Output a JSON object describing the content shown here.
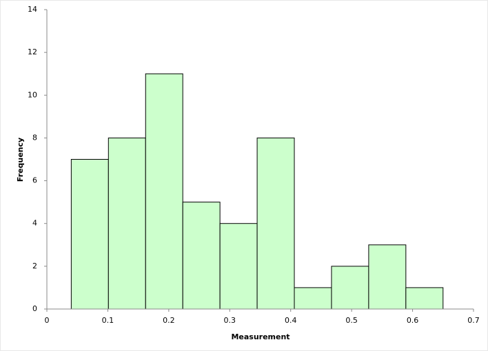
{
  "chart_data": {
    "type": "histogram",
    "xlabel": "Measurement",
    "ylabel": "Frequency",
    "bins": [
      0.04,
      0.101,
      0.162,
      0.223,
      0.284,
      0.345,
      0.406,
      0.467,
      0.528,
      0.589,
      0.65
    ],
    "values": [
      7,
      8,
      11,
      5,
      4,
      8,
      1,
      2,
      3,
      1
    ],
    "color": "#ccffcc",
    "edgecolor": "#000000",
    "xlim": [
      0,
      0.7
    ],
    "xticks": [
      0,
      0.1,
      0.2,
      0.3,
      0.4,
      0.5,
      0.6,
      0.7
    ],
    "ylim": [
      0,
      14
    ],
    "yticks": [
      0,
      2,
      4,
      6,
      8,
      10,
      12,
      14
    ],
    "grid": false
  }
}
